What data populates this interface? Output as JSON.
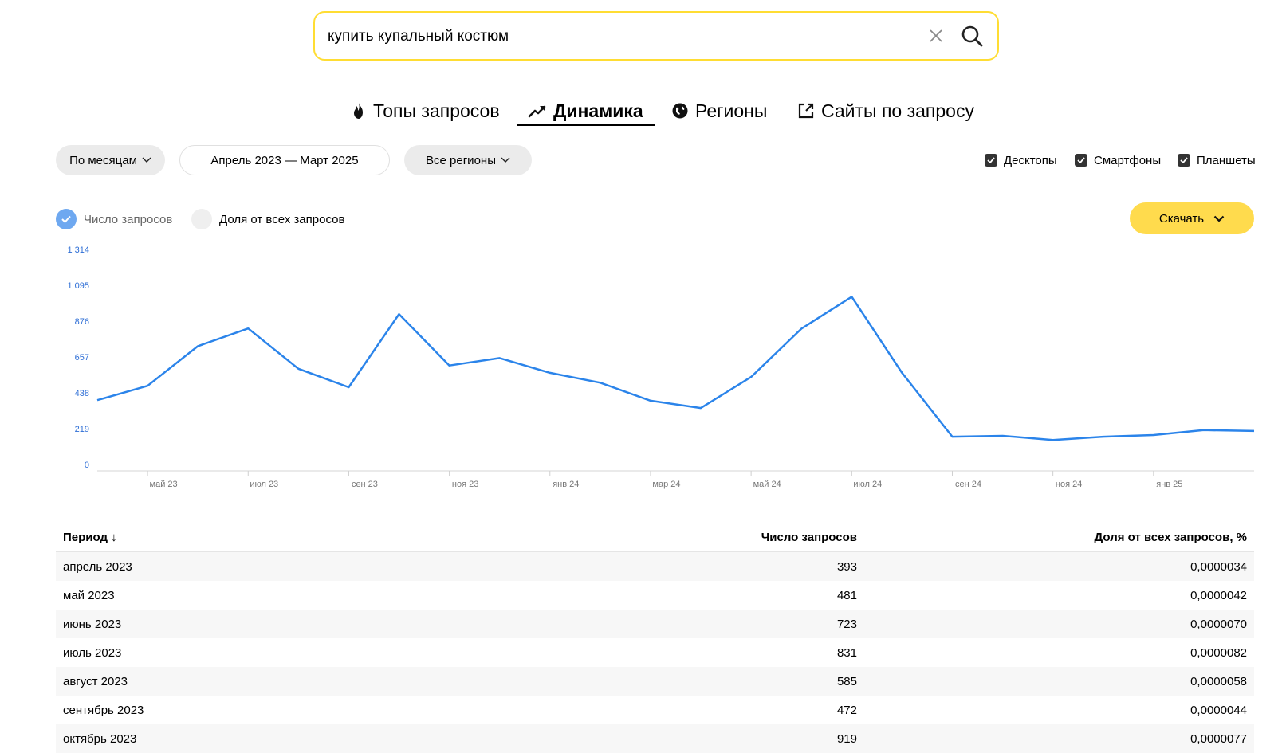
{
  "search": {
    "value": "купить купальный костюм"
  },
  "tabs": [
    {
      "label": "Топы запросов",
      "icon": "fire-icon"
    },
    {
      "label": "Динамика",
      "icon": "trend-icon",
      "active": true
    },
    {
      "label": "Регионы",
      "icon": "globe-icon"
    },
    {
      "label": "Сайты по запросу",
      "icon": "external-link-icon"
    }
  ],
  "filters": {
    "period_type": "По месяцам",
    "date_range": "Апрель 2023 — Март 2025",
    "regions": "Все регионы"
  },
  "devices": [
    {
      "label": "Десктопы",
      "checked": true
    },
    {
      "label": "Смартфоны",
      "checked": true
    },
    {
      "label": "Планшеты",
      "checked": true
    }
  ],
  "metrics": [
    {
      "label": "Число запросов",
      "selected": true
    },
    {
      "label": "Доля от всех запросов",
      "selected": false
    }
  ],
  "download_label": "Скачать",
  "colors": {
    "accent": "#ffdb4d",
    "search_border": "#ffdd33",
    "line": "#2b84ea",
    "selected_dot": "#6ea8f0"
  },
  "chart_data": {
    "type": "line",
    "yticks": [
      "0",
      "219",
      "438",
      "657",
      "876",
      "1 095",
      "1 314"
    ],
    "ylim": [
      0,
      1314
    ],
    "xtick_labels": [
      "май 23",
      "июл 23",
      "сен 23",
      "ноя 23",
      "янв 24",
      "мар 24",
      "май 24",
      "июл 24",
      "сен 24",
      "ноя 24",
      "янв 25"
    ],
    "xtick_index": [
      1,
      3,
      5,
      7,
      9,
      11,
      13,
      15,
      17,
      19,
      21
    ],
    "series": [
      {
        "values": [
          393,
          481,
          723,
          831,
          585,
          472,
          919,
          605,
          650,
          560,
          500,
          390,
          345,
          535,
          830,
          1025,
          560,
          170,
          175,
          150,
          170,
          180,
          210,
          205
        ]
      }
    ]
  },
  "table": {
    "headers": [
      "Период ↓",
      "Число запросов",
      "Доля от всех запросов, %"
    ],
    "rows": [
      [
        "апрель 2023",
        "393",
        "0,0000034"
      ],
      [
        "май 2023",
        "481",
        "0,0000042"
      ],
      [
        "июнь 2023",
        "723",
        "0,0000070"
      ],
      [
        "июль 2023",
        "831",
        "0,0000082"
      ],
      [
        "август 2023",
        "585",
        "0,0000058"
      ],
      [
        "сентябрь 2023",
        "472",
        "0,0000044"
      ],
      [
        "октябрь 2023",
        "919",
        "0,0000077"
      ]
    ]
  }
}
